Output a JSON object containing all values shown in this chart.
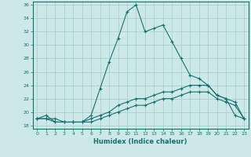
{
  "xlabel": "Humidex (Indice chaleur)",
  "bg_color": "#cce8e8",
  "grid_color": "#aacccc",
  "line_color": "#1a7070",
  "xlim": [
    -0.5,
    23.5
  ],
  "ylim": [
    17.5,
    36.5
  ],
  "xticks": [
    0,
    1,
    2,
    3,
    4,
    5,
    6,
    7,
    8,
    9,
    10,
    11,
    12,
    13,
    14,
    15,
    16,
    17,
    18,
    19,
    20,
    21,
    22,
    23
  ],
  "yticks": [
    18,
    20,
    22,
    24,
    26,
    28,
    30,
    32,
    34,
    36
  ],
  "line1_x": [
    0,
    1,
    2,
    3,
    4,
    5,
    6,
    7,
    8,
    9,
    10,
    11,
    12,
    13,
    14,
    15,
    16,
    17,
    18,
    19,
    20,
    21,
    22,
    23
  ],
  "line1_y": [
    19,
    19.5,
    18.5,
    18.5,
    18.5,
    18.5,
    19.5,
    23.5,
    27.5,
    31,
    35,
    36,
    32,
    32.5,
    33,
    30.5,
    28,
    25.5,
    25,
    24,
    22.5,
    22,
    19.5,
    19
  ],
  "line2_x": [
    0,
    1,
    2,
    3,
    4,
    5,
    6,
    7,
    8,
    9,
    10,
    11,
    12,
    13,
    14,
    15,
    16,
    17,
    18,
    19,
    20,
    21,
    22,
    23
  ],
  "line2_y": [
    19,
    19,
    18.5,
    18.5,
    18.5,
    18.5,
    19,
    19.5,
    20,
    21,
    21.5,
    22,
    22,
    22.5,
    23,
    23,
    23.5,
    24,
    24,
    24,
    22.5,
    22,
    21.5,
    19
  ],
  "line3_x": [
    0,
    1,
    2,
    3,
    4,
    5,
    6,
    7,
    8,
    9,
    10,
    11,
    12,
    13,
    14,
    15,
    16,
    17,
    18,
    19,
    20,
    21,
    22,
    23
  ],
  "line3_y": [
    19,
    19,
    19,
    18.5,
    18.5,
    18.5,
    18.5,
    19,
    19.5,
    20,
    20.5,
    21,
    21,
    21.5,
    22,
    22,
    22.5,
    23,
    23,
    23,
    22,
    21.5,
    21,
    19
  ]
}
